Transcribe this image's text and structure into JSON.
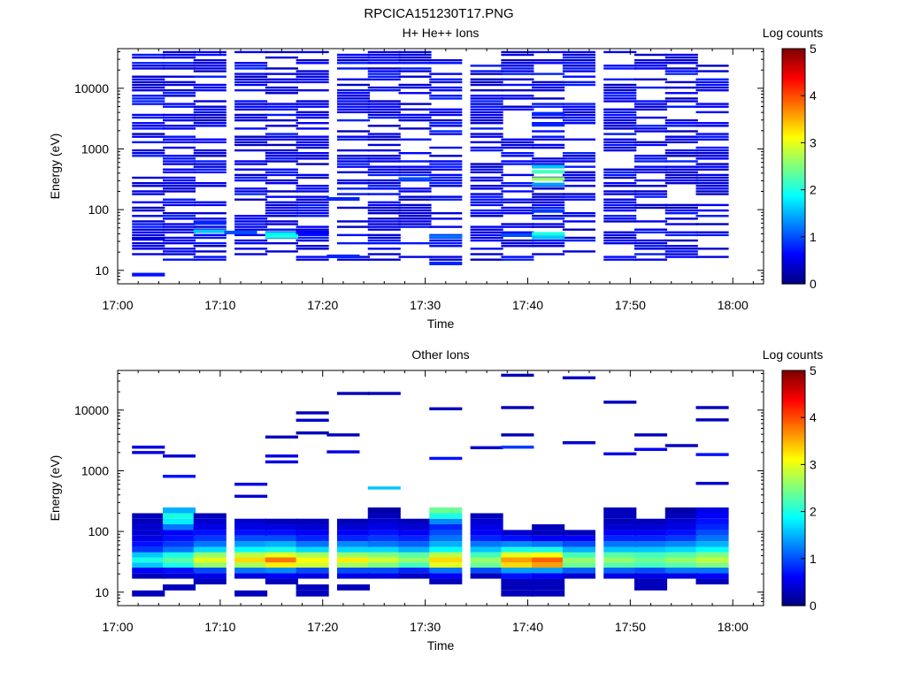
{
  "figure_title": "RPCICA151230T17.PNG",
  "colors": {
    "colormap": [
      "#00007f",
      "#0000ff",
      "#007fff",
      "#00ffff",
      "#7fff7f",
      "#ffff00",
      "#ff7f00",
      "#ff0000",
      "#7f0000"
    ]
  },
  "chart_data": [
    {
      "type": "heatmap",
      "title": "H+ He++ Ions",
      "xlabel": "Time",
      "ylabel": "Energy (eV)",
      "xscale": "time",
      "yscale": "log",
      "xlim": [
        "17:00",
        "18:03"
      ],
      "ylim": [
        6,
        45000
      ],
      "x_ticks": [
        "17:00",
        "17:10",
        "17:20",
        "17:30",
        "17:40",
        "17:50",
        "18:00"
      ],
      "y_ticks": [
        10,
        100,
        1000,
        10000
      ],
      "colorbar": {
        "label": "Log counts",
        "range": [
          0,
          5
        ],
        "ticks": [
          "0",
          "1",
          "2",
          "3",
          "4",
          "5"
        ]
      },
      "time_bins": [
        "17:03",
        "17:06",
        "17:09",
        "17:13",
        "17:16",
        "17:19",
        "17:23",
        "17:26",
        "17:29",
        "17:32",
        "17:36",
        "17:39",
        "17:42",
        "17:45",
        "17:49",
        "17:52",
        "17:55",
        "17:58"
      ],
      "bin_minutes": 3.2,
      "dense_background": {
        "value": 0.3,
        "from_eV": 15,
        "to_eV": 40000,
        "coverage": 0.55
      },
      "cells": [
        {
          "t": "17:03",
          "e": 8.5,
          "v": 0.7
        },
        {
          "t": "17:03",
          "e": 33,
          "v": 0.5
        },
        {
          "t": "17:09",
          "e": 44,
          "v": 1.6
        },
        {
          "t": "17:09",
          "e": 60,
          "v": 0.8
        },
        {
          "t": "17:12",
          "e": 42,
          "v": 1.0
        },
        {
          "t": "17:16",
          "e": 40,
          "v": 1.8
        },
        {
          "t": "17:16",
          "e": 36,
          "v": 2.0
        },
        {
          "t": "17:19",
          "e": 42,
          "v": 0.6
        },
        {
          "t": "17:22",
          "e": 17,
          "v": 0.8
        },
        {
          "t": "17:22",
          "e": 150,
          "v": 0.8
        },
        {
          "t": "17:29",
          "e": 320,
          "v": 1.0
        },
        {
          "t": "17:32",
          "e": 36,
          "v": 1.2
        },
        {
          "t": "17:32",
          "e": 13,
          "v": 0.8
        },
        {
          "t": "17:39",
          "e": 38,
          "v": 1.0
        },
        {
          "t": "17:42",
          "e": 510,
          "v": 1.6
        },
        {
          "t": "17:42",
          "e": 420,
          "v": 2.2
        },
        {
          "t": "17:42",
          "e": 320,
          "v": 2.6
        },
        {
          "t": "17:42",
          "e": 260,
          "v": 1.4
        },
        {
          "t": "17:42",
          "e": 40,
          "v": 2.0
        },
        {
          "t": "17:42",
          "e": 35,
          "v": 1.6
        },
        {
          "t": "17:42",
          "e": 95,
          "v": 0.9
        },
        {
          "t": "17:42",
          "e": 2500,
          "v": 0.8
        },
        {
          "t": "17:42",
          "e": 3800,
          "v": 0.8
        }
      ]
    },
    {
      "type": "heatmap",
      "title": "Other Ions",
      "xlabel": "Time",
      "ylabel": "Energy (eV)",
      "xscale": "time",
      "yscale": "log",
      "xlim": [
        "17:00",
        "18:03"
      ],
      "ylim": [
        6,
        45000
      ],
      "x_ticks": [
        "17:00",
        "17:10",
        "17:20",
        "17:30",
        "17:40",
        "17:50",
        "18:00"
      ],
      "y_ticks": [
        10,
        100,
        1000,
        10000
      ],
      "colorbar": {
        "label": "Log counts",
        "range": [
          0,
          5
        ],
        "ticks": [
          "0",
          "1",
          "2",
          "3",
          "4",
          "5"
        ]
      },
      "time_bins": [
        "17:03",
        "17:06",
        "17:09",
        "17:13",
        "17:16",
        "17:19",
        "17:23",
        "17:26",
        "17:29",
        "17:32",
        "17:36",
        "17:39",
        "17:42",
        "17:45",
        "17:49",
        "17:52",
        "17:55",
        "17:58"
      ],
      "bin_minutes": 3.2,
      "energy_rows_eV": [
        9.5,
        12,
        15,
        18.5,
        23,
        28,
        34,
        41,
        50,
        62,
        77,
        95,
        118,
        146,
        180,
        222
      ],
      "matrix": [
        [
          0.3,
          0,
          0,
          0.3,
          0.6,
          1.6,
          2.0,
          1.6,
          0.9,
          0.7,
          0.5,
          0.4,
          0.4,
          0.3,
          0.3,
          0
        ],
        [
          0,
          0.3,
          0,
          0.4,
          0.7,
          2.0,
          2.3,
          2.0,
          1.2,
          0.9,
          0.7,
          0.6,
          1.2,
          1.8,
          2.0,
          1.5
        ],
        [
          0,
          0,
          0.3,
          0.5,
          1.0,
          2.6,
          3.0,
          2.6,
          1.7,
          1.2,
          0.9,
          0.7,
          0.5,
          0.4,
          0.3,
          0
        ],
        [
          0.3,
          0,
          0,
          0.5,
          1.2,
          2.7,
          3.3,
          2.8,
          1.9,
          1.4,
          1.0,
          0.7,
          0.5,
          0.4,
          0,
          0
        ],
        [
          0,
          0,
          0.3,
          0.6,
          1.3,
          3.2,
          3.8,
          3.0,
          2.0,
          1.5,
          1.0,
          0.7,
          0.5,
          0.3,
          0,
          0
        ],
        [
          0.3,
          0.3,
          0,
          0.5,
          1.0,
          2.9,
          3.1,
          2.7,
          1.7,
          1.2,
          0.8,
          0.6,
          0.4,
          0.3,
          0,
          0
        ],
        [
          0,
          0.3,
          0,
          0.5,
          1.0,
          2.7,
          3.2,
          2.6,
          1.7,
          1.3,
          0.8,
          0.6,
          0.4,
          0.3,
          0,
          0
        ],
        [
          0,
          0,
          0,
          0.5,
          1.0,
          2.5,
          2.9,
          2.5,
          1.7,
          1.2,
          0.9,
          0.7,
          0.5,
          0.4,
          0.3,
          0.2
        ],
        [
          0,
          0,
          0,
          0.3,
          0.8,
          2.2,
          2.6,
          2.3,
          1.5,
          1.1,
          0.8,
          0.6,
          0.4,
          0.3,
          0,
          0
        ],
        [
          0,
          0,
          0.3,
          0.6,
          1.2,
          3.0,
          3.3,
          2.8,
          1.9,
          1.5,
          1.2,
          1.0,
          0.8,
          1.3,
          2.0,
          2.4
        ],
        [
          0,
          0,
          0,
          0.3,
          1.0,
          2.4,
          2.6,
          2.2,
          1.6,
          1.2,
          0.8,
          0.6,
          0.5,
          0.4,
          0.3,
          0
        ],
        [
          0.3,
          0.3,
          0.3,
          0.7,
          1.4,
          3.3,
          3.6,
          3.0,
          2.0,
          1.3,
          0.7,
          0.4,
          0,
          0,
          0,
          0
        ],
        [
          0.3,
          0.3,
          0.3,
          0.6,
          1.4,
          3.6,
          3.9,
          3.1,
          2.0,
          1.2,
          0.6,
          0.3,
          0.3,
          0,
          0,
          0
        ],
        [
          0,
          0,
          0,
          0.4,
          1.1,
          2.4,
          2.6,
          2.2,
          1.5,
          1.0,
          0.6,
          0.3,
          0,
          0,
          0,
          0
        ],
        [
          0,
          0,
          0,
          0.5,
          1.1,
          2.3,
          2.6,
          2.3,
          1.6,
          1.2,
          0.8,
          0.6,
          0.4,
          0.3,
          0.3,
          0.3
        ],
        [
          0,
          0.3,
          0.3,
          0.5,
          1.0,
          2.2,
          2.4,
          2.2,
          1.6,
          1.2,
          0.8,
          0.6,
          0.4,
          0.3,
          0,
          0
        ],
        [
          0,
          0,
          0,
          0.5,
          1.2,
          2.3,
          2.6,
          2.3,
          1.7,
          1.3,
          0.9,
          0.7,
          0.5,
          0.4,
          0.3,
          0.2
        ],
        [
          0,
          0,
          0.3,
          0.6,
          1.2,
          2.5,
          2.8,
          2.5,
          1.9,
          1.5,
          1.2,
          1.0,
          0.8,
          0.7,
          0.6,
          0.5
        ]
      ],
      "high_energy": [
        {
          "t": "17:03",
          "e": 2000,
          "v": 0.5
        },
        {
          "t": "17:03",
          "e": 2450,
          "v": 0.5
        },
        {
          "t": "17:06",
          "e": 810,
          "v": 0.7
        },
        {
          "t": "17:06",
          "e": 1750,
          "v": 0.4
        },
        {
          "t": "17:13",
          "e": 380,
          "v": 0.4
        },
        {
          "t": "17:13",
          "e": 600,
          "v": 0.5
        },
        {
          "t": "17:16",
          "e": 1400,
          "v": 0.5
        },
        {
          "t": "17:16",
          "e": 1750,
          "v": 0.5
        },
        {
          "t": "17:16",
          "e": 3600,
          "v": 0.3
        },
        {
          "t": "17:19",
          "e": 4200,
          "v": 0.3
        },
        {
          "t": "17:19",
          "e": 6800,
          "v": 0.4
        },
        {
          "t": "17:19",
          "e": 9000,
          "v": 0.3
        },
        {
          "t": "17:22",
          "e": 2050,
          "v": 0.5
        },
        {
          "t": "17:22",
          "e": 3900,
          "v": 0.3
        },
        {
          "t": "17:23",
          "e": 18800,
          "v": 0.3
        },
        {
          "t": "17:26",
          "e": 18800,
          "v": 0.3
        },
        {
          "t": "17:26",
          "e": 520,
          "v": 1.6
        },
        {
          "t": "17:32",
          "e": 1600,
          "v": 0.7
        },
        {
          "t": "17:32",
          "e": 10500,
          "v": 0.3
        },
        {
          "t": "17:36",
          "e": 2400,
          "v": 0.4
        },
        {
          "t": "17:39",
          "e": 2450,
          "v": 0.9
        },
        {
          "t": "17:39",
          "e": 3900,
          "v": 0.3
        },
        {
          "t": "17:39",
          "e": 11000,
          "v": 0.3
        },
        {
          "t": "17:39",
          "e": 37500,
          "v": 0.3
        },
        {
          "t": "17:45",
          "e": 2900,
          "v": 0.4
        },
        {
          "t": "17:45",
          "e": 34000,
          "v": 0.3
        },
        {
          "t": "17:49",
          "e": 1900,
          "v": 0.5
        },
        {
          "t": "17:49",
          "e": 13500,
          "v": 0.3
        },
        {
          "t": "17:52",
          "e": 2250,
          "v": 0.6
        },
        {
          "t": "17:52",
          "e": 3900,
          "v": 0.3
        },
        {
          "t": "17:55",
          "e": 2600,
          "v": 0.3
        },
        {
          "t": "17:58",
          "e": 1850,
          "v": 0.7
        },
        {
          "t": "17:58",
          "e": 6900,
          "v": 0.3
        },
        {
          "t": "17:58",
          "e": 11000,
          "v": 0.3
        },
        {
          "t": "17:58",
          "e": 620,
          "v": 0.4
        }
      ]
    }
  ]
}
